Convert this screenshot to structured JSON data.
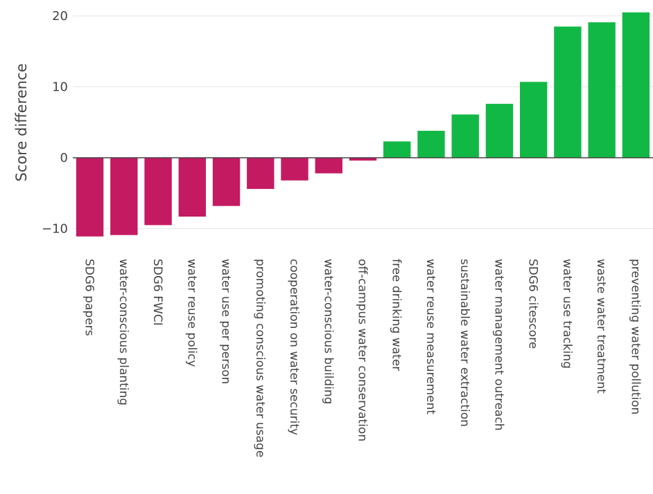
{
  "chart_data": {
    "type": "bar",
    "ylabel": "Score difference",
    "ylim": [
      -11.5,
      20.5
    ],
    "yticks": [
      20,
      10,
      0,
      -10
    ],
    "ytick_labels": [
      "20",
      "10",
      "0",
      "−10"
    ],
    "grid": true,
    "categories": [
      "SDG6 papers",
      "water-conscious planting",
      "SDG6 FWCI",
      "water reuse policy",
      "water use per person",
      "promoting conscious water usage",
      "cooperation on water security",
      "water-conscious building",
      "off-campus water conservation",
      "free drinking water",
      "water reuse measurement",
      "sustainable water extraction",
      "water management outreach",
      "SDG6 citescore",
      "water use tracking",
      "waste water treatment",
      "preventing water pollution"
    ],
    "values": [
      -11.1,
      -10.9,
      -9.5,
      -8.3,
      -6.8,
      -4.4,
      -3.2,
      -2.2,
      -0.4,
      2.3,
      3.8,
      6.1,
      7.6,
      10.7,
      18.5,
      19.1,
      20.5
    ],
    "colors": {
      "negative": "#c41a62",
      "positive": "#12b845"
    }
  }
}
